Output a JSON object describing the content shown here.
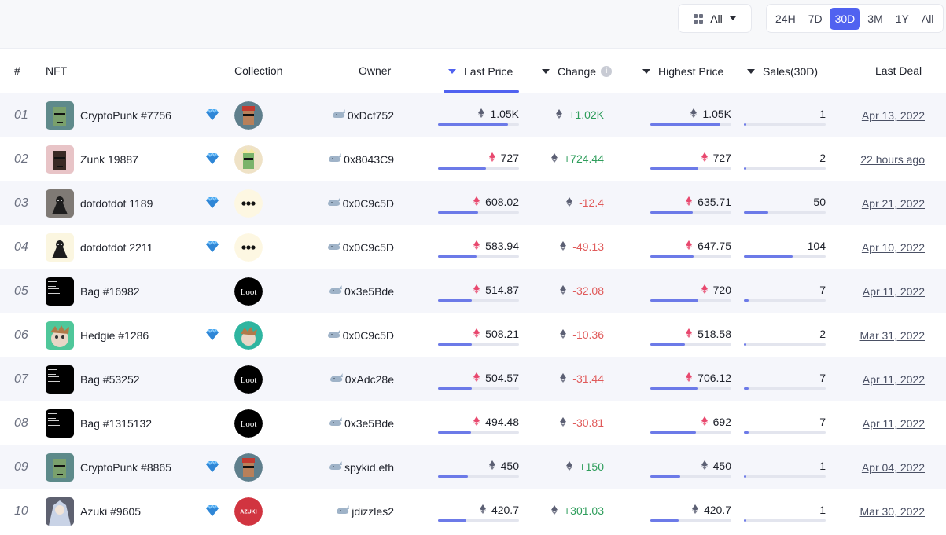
{
  "filters": {
    "category_label": "All",
    "periods": [
      "24H",
      "7D",
      "30D",
      "3M",
      "1Y",
      "All"
    ],
    "active_period": "30D"
  },
  "columns": {
    "rank": "#",
    "nft": "NFT",
    "collection": "Collection",
    "owner": "Owner",
    "last_price": "Last Price",
    "change": "Change",
    "highest_price": "Highest Price",
    "sales": "Sales(30D)",
    "last_deal": "Last Deal"
  },
  "sort": {
    "column": "last_price",
    "direction": "desc"
  },
  "colors": {
    "accent": "#5062f0",
    "positive": "#2e9d5b",
    "negative": "#e05a5a",
    "eth_listed": "#e8486e",
    "eth_default": "#5b5f73"
  },
  "rows": [
    {
      "rank": "01",
      "name": "CryptoPunk #7756",
      "diamond": true,
      "collection": "cryptopunks",
      "owner": "0xDcf752",
      "last_price": "1.05K",
      "last_price_eth": 1050,
      "change": "+1.02K",
      "change_dir": "pos",
      "highest_price": "1.05K",
      "highest_price_eth": 1050,
      "sales": "1",
      "sales_n": 1,
      "last_deal": "Apr 13, 2022",
      "eth_color": "default",
      "thumb_color": "#5f8a8b",
      "coll_color": "#5f7f8c"
    },
    {
      "rank": "02",
      "name": "Zunk 19887",
      "diamond": true,
      "collection": "zunks",
      "owner": "0x8043C9",
      "last_price": "727",
      "last_price_eth": 727,
      "change": "+724.44",
      "change_dir": "pos",
      "highest_price": "727",
      "highest_price_eth": 727,
      "sales": "2",
      "sales_n": 2,
      "last_deal": "22 hours ago",
      "eth_color": "listed",
      "thumb_color": "#e8c4c7",
      "coll_color": "#efe2c6"
    },
    {
      "rank": "03",
      "name": "dotdotdot 1189",
      "diamond": true,
      "collection": "dotdotdots",
      "owner": "0x0C9c5D",
      "last_price": "608.02",
      "last_price_eth": 608.02,
      "change": "-12.4",
      "change_dir": "neg",
      "highest_price": "635.71",
      "highest_price_eth": 635.71,
      "sales": "50",
      "sales_n": 50,
      "last_deal": "Apr 21, 2022",
      "eth_color": "listed",
      "thumb_color": "#7f7a75",
      "coll_color": "#fdf7e2"
    },
    {
      "rank": "04",
      "name": "dotdotdot 2211",
      "diamond": true,
      "collection": "dotdotdots",
      "owner": "0x0C9c5D",
      "last_price": "583.94",
      "last_price_eth": 583.94,
      "change": "-49.13",
      "change_dir": "neg",
      "highest_price": "647.75",
      "highest_price_eth": 647.75,
      "sales": "104",
      "sales_n": 104,
      "last_deal": "Apr 10, 2022",
      "eth_color": "listed",
      "thumb_color": "#fbf6e0",
      "coll_color": "#fdf7e2"
    },
    {
      "rank": "05",
      "name": "Bag #16982",
      "diamond": false,
      "collection": "Loot",
      "owner": "0x3e5Bde",
      "last_price": "514.87",
      "last_price_eth": 514.87,
      "change": "-32.08",
      "change_dir": "neg",
      "highest_price": "720",
      "highest_price_eth": 720,
      "sales": "7",
      "sales_n": 7,
      "last_deal": "Apr 11, 2022",
      "eth_color": "listed",
      "thumb_color": "#000000",
      "coll_color": "#000000"
    },
    {
      "rank": "06",
      "name": "Hedgie #1286",
      "diamond": true,
      "collection": "hedgies",
      "owner": "0x0C9c5D",
      "last_price": "508.21",
      "last_price_eth": 508.21,
      "change": "-10.36",
      "change_dir": "neg",
      "highest_price": "518.58",
      "highest_price_eth": 518.58,
      "sales": "2",
      "sales_n": 2,
      "last_deal": "Mar 31, 2022",
      "eth_color": "listed",
      "thumb_color": "#4fc79a",
      "coll_color": "#2fb5a0"
    },
    {
      "rank": "07",
      "name": "Bag #53252",
      "diamond": false,
      "collection": "Loot",
      "owner": "0xAdc28e",
      "last_price": "504.57",
      "last_price_eth": 504.57,
      "change": "-31.44",
      "change_dir": "neg",
      "highest_price": "706.12",
      "highest_price_eth": 706.12,
      "sales": "7",
      "sales_n": 7,
      "last_deal": "Apr 11, 2022",
      "eth_color": "listed",
      "thumb_color": "#000000",
      "coll_color": "#000000"
    },
    {
      "rank": "08",
      "name": "Bag #1315132",
      "diamond": false,
      "collection": "Loot",
      "owner": "0x3e5Bde",
      "last_price": "494.48",
      "last_price_eth": 494.48,
      "change": "-30.81",
      "change_dir": "neg",
      "highest_price": "692",
      "highest_price_eth": 692,
      "sales": "7",
      "sales_n": 7,
      "last_deal": "Apr 11, 2022",
      "eth_color": "listed",
      "thumb_color": "#000000",
      "coll_color": "#000000"
    },
    {
      "rank": "09",
      "name": "CryptoPunk #8865",
      "diamond": true,
      "collection": "cryptopunks",
      "owner": "spykid.eth",
      "last_price": "450",
      "last_price_eth": 450,
      "change": "+150",
      "change_dir": "pos",
      "highest_price": "450",
      "highest_price_eth": 450,
      "sales": "1",
      "sales_n": 1,
      "last_deal": "Apr 04, 2022",
      "eth_color": "default",
      "thumb_color": "#5d8a8a",
      "coll_color": "#5f7f8c"
    },
    {
      "rank": "10",
      "name": "Azuki #9605",
      "diamond": true,
      "collection": "AZUKI",
      "owner": "jdizzles2",
      "last_price": "420.7",
      "last_price_eth": 420.7,
      "change": "+301.03",
      "change_dir": "pos",
      "highest_price": "420.7",
      "highest_price_eth": 420.7,
      "sales": "1",
      "sales_n": 1,
      "last_deal": "Mar 30, 2022",
      "eth_color": "default",
      "thumb_color": "#5e6170",
      "coll_color": "#d13440"
    }
  ]
}
